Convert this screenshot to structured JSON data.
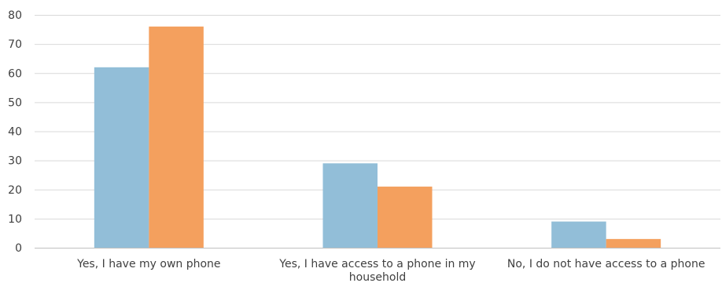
{
  "chart_data": {
    "type": "bar",
    "categories": [
      [
        "Yes, I have my own phone"
      ],
      [
        "Yes, I have access to a phone in my",
        "household"
      ],
      [
        "No, I do not have access to a phone"
      ]
    ],
    "series": [
      {
        "color": "#92bed8",
        "values": [
          62,
          29,
          9
        ]
      },
      {
        "color": "#f4a05e",
        "values": [
          76,
          21,
          3
        ]
      }
    ],
    "ylim": [
      0,
      80
    ],
    "yticks": [
      0,
      10,
      20,
      30,
      40,
      50,
      60,
      70,
      80
    ],
    "grid": true,
    "legend": "none"
  }
}
